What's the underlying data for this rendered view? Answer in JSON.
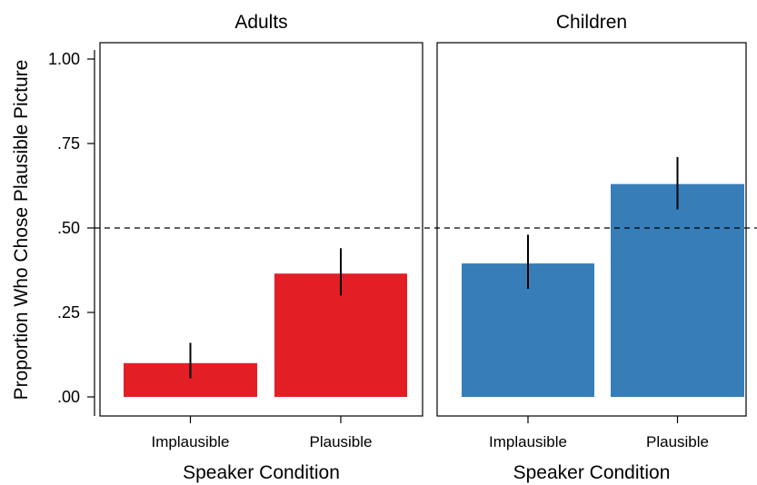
{
  "chart_data": {
    "type": "bar",
    "ylabel": "Proportion Who Chose Plausible Picture",
    "ylim": [
      0,
      1.05
    ],
    "yticks": [
      {
        "value": 0,
        "label": ".00"
      },
      {
        "value": 0.25,
        "label": ".25"
      },
      {
        "value": 0.5,
        "label": ".50"
      },
      {
        "value": 0.75,
        "label": ".75"
      },
      {
        "value": 1.0,
        "label": "1.00"
      }
    ],
    "reference_line": {
      "value": 0.5,
      "style": "dashed"
    },
    "grid": false,
    "panels": [
      {
        "title": "Adults",
        "xlabel": "Speaker Condition",
        "color": "#e31f26",
        "categories": [
          "Implausible",
          "Plausible"
        ],
        "values": [
          0.1,
          0.365
        ],
        "error_low": [
          0.055,
          0.3
        ],
        "error_high": [
          0.16,
          0.44
        ]
      },
      {
        "title": "Children",
        "xlabel": "Speaker Condition",
        "color": "#377eb8",
        "categories": [
          "Implausible",
          "Plausible"
        ],
        "values": [
          0.395,
          0.63
        ],
        "error_low": [
          0.32,
          0.555
        ],
        "error_high": [
          0.48,
          0.71
        ]
      }
    ]
  }
}
